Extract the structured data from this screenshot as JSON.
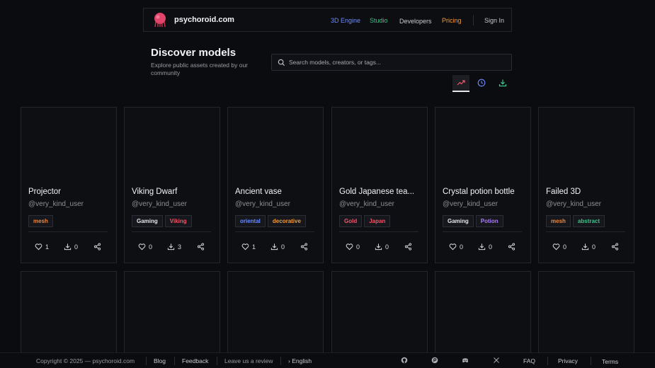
{
  "header": {
    "brand": "psychoroid.com",
    "nav": {
      "engine": "3D Engine",
      "studio": "Studio",
      "developers": "Developers",
      "pricing": "Pricing",
      "signin": "Sign In"
    },
    "colors": {
      "engine": "#6f8cff",
      "studio": "#3fc48b",
      "pricing": "#f39c3c"
    }
  },
  "page": {
    "title": "Discover models",
    "subtitle": "Explore public assets created by our community"
  },
  "search": {
    "placeholder": "Search models, creators, or tags..."
  },
  "sort_tabs": [
    {
      "icon": "trending-icon",
      "active": true
    },
    {
      "icon": "clock-icon",
      "active": false
    },
    {
      "icon": "download-icon",
      "active": false
    }
  ],
  "cards": [
    {
      "title": "Projector",
      "user": "@very_kind_user",
      "tags": [
        {
          "label": "mesh",
          "color": "#f0883e"
        }
      ],
      "likes": "1",
      "downloads": "0"
    },
    {
      "title": "Viking Dwarf",
      "user": "@very_kind_user",
      "tags": [
        {
          "label": "Gaming",
          "color": "#e6e7ea"
        },
        {
          "label": "Viking",
          "color": "#f0566a"
        }
      ],
      "likes": "0",
      "downloads": "3"
    },
    {
      "title": "Ancient vase",
      "user": "@very_kind_user",
      "tags": [
        {
          "label": "oriental",
          "color": "#6f8cff"
        },
        {
          "label": "decorative",
          "color": "#f39c3c"
        }
      ],
      "likes": "1",
      "downloads": "0"
    },
    {
      "title": "Gold Japanese tea...",
      "user": "@very_kind_user",
      "tags": [
        {
          "label": "Gold",
          "color": "#f0566a"
        },
        {
          "label": "Japan",
          "color": "#f0566a"
        }
      ],
      "likes": "0",
      "downloads": "0"
    },
    {
      "title": "Crystal potion bottle",
      "user": "@very_kind_user",
      "tags": [
        {
          "label": "Gaming",
          "color": "#e6e7ea"
        },
        {
          "label": "Potion",
          "color": "#b07cff"
        }
      ],
      "likes": "0",
      "downloads": "0"
    },
    {
      "title": "Failed 3D",
      "user": "@very_kind_user",
      "tags": [
        {
          "label": "mesh",
          "color": "#f0883e"
        },
        {
          "label": "abstract",
          "color": "#3fc48b"
        }
      ],
      "likes": "0",
      "downloads": "0"
    }
  ],
  "footer": {
    "copyright": "Copyright © 2025 — psychoroid.com",
    "blog": "Blog",
    "feedback": "Feedback",
    "review": "Leave us a review",
    "language": "› English",
    "icons": [
      "github-icon",
      "producthunt-icon",
      "discord-icon",
      "x-icon"
    ],
    "faq": "FAQ",
    "privacy": "Privacy",
    "terms": "Terms"
  }
}
